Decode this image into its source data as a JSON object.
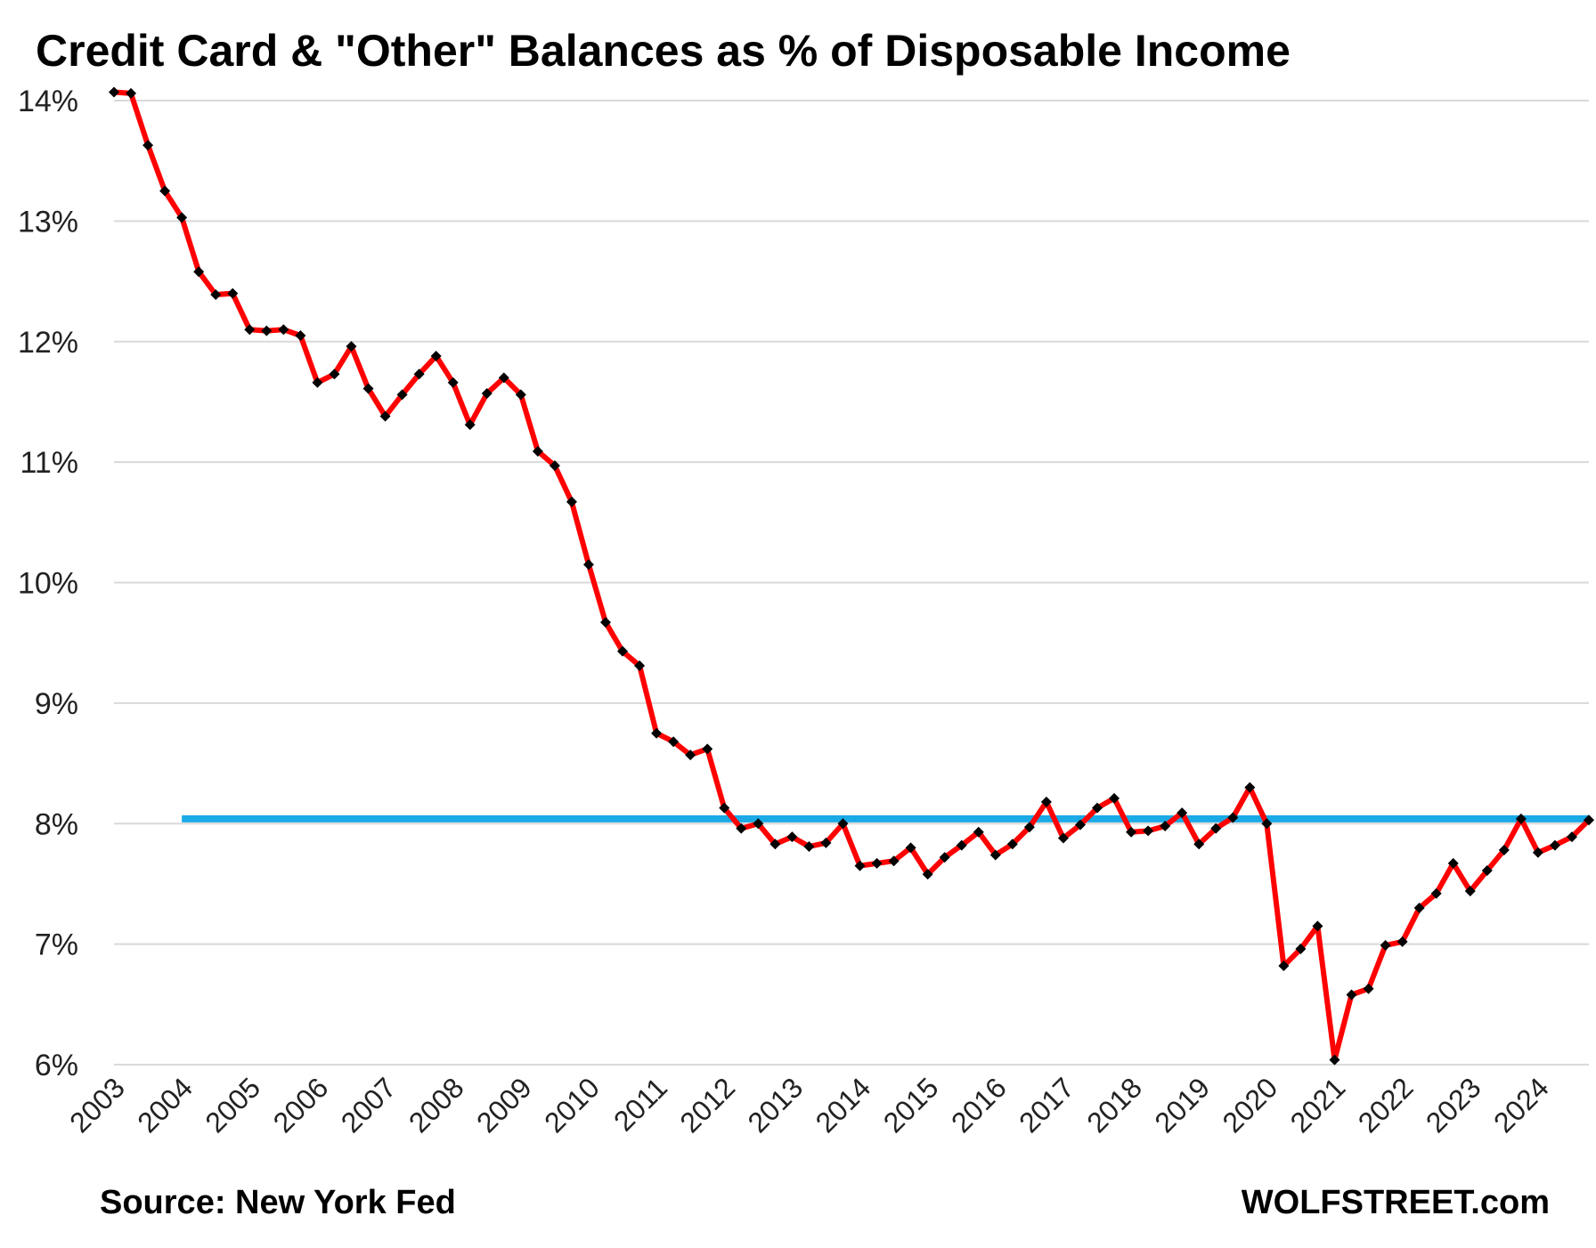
{
  "header": {
    "title": "Credit Card & \"Other\" Balances as % of Disposable Income"
  },
  "footer": {
    "source": "Source: New York Fed",
    "brand": "WOLFSTREET.com"
  },
  "colors": {
    "line": "#ff0000",
    "marker": "#000000",
    "reference": "#1aaae6",
    "grid": "#d9d9d9"
  },
  "chart_data": {
    "type": "line",
    "title": "Credit Card & \"Other\" Balances as % of Disposable Income",
    "xlabel": "",
    "ylabel": "",
    "ylim": [
      6,
      14
    ],
    "y_tick_labels": [
      "6%",
      "7%",
      "8%",
      "9%",
      "10%",
      "11%",
      "12%",
      "13%",
      "14%"
    ],
    "x_tick_labels": [
      "2003",
      "2004",
      "2005",
      "2006",
      "2007",
      "2008",
      "2009",
      "2010",
      "2011",
      "2012",
      "2013",
      "2014",
      "2015",
      "2016",
      "2017",
      "2018",
      "2019",
      "2020",
      "2021",
      "2022",
      "2023",
      "2024"
    ],
    "grid": "horizontal",
    "legend": "none",
    "series": [
      {
        "values": [
          14.07,
          14.06,
          13.63,
          13.25,
          13.03,
          12.58,
          12.39,
          12.4,
          12.1,
          12.09,
          12.1,
          12.05,
          11.66,
          11.73,
          11.96,
          11.61,
          11.38,
          11.56,
          11.73,
          11.88,
          11.66,
          11.31,
          11.57,
          11.7,
          11.56,
          11.09,
          10.97,
          10.67,
          10.15,
          9.67,
          9.43,
          9.31,
          8.75,
          8.68,
          8.57,
          8.62,
          8.13,
          7.96,
          8.0,
          7.83,
          7.89,
          7.81,
          7.84,
          8.0,
          7.65,
          7.67,
          7.69,
          7.8,
          7.58,
          7.72,
          7.82,
          7.93,
          7.74,
          7.83,
          7.97,
          8.18,
          7.88,
          7.99,
          8.13,
          8.21,
          7.93,
          7.94,
          7.98,
          8.09,
          7.83,
          7.96,
          8.05,
          8.3,
          8.0,
          6.82,
          6.96,
          7.15,
          6.04,
          6.58,
          6.63,
          6.99,
          7.02,
          7.3,
          7.42,
          7.67,
          7.44,
          7.61,
          7.78,
          8.04,
          7.76,
          7.82,
          7.89,
          8.03
        ]
      }
    ],
    "reference_line": {
      "value": 8.04,
      "from": "2004",
      "to": "2024 Q4"
    }
  }
}
